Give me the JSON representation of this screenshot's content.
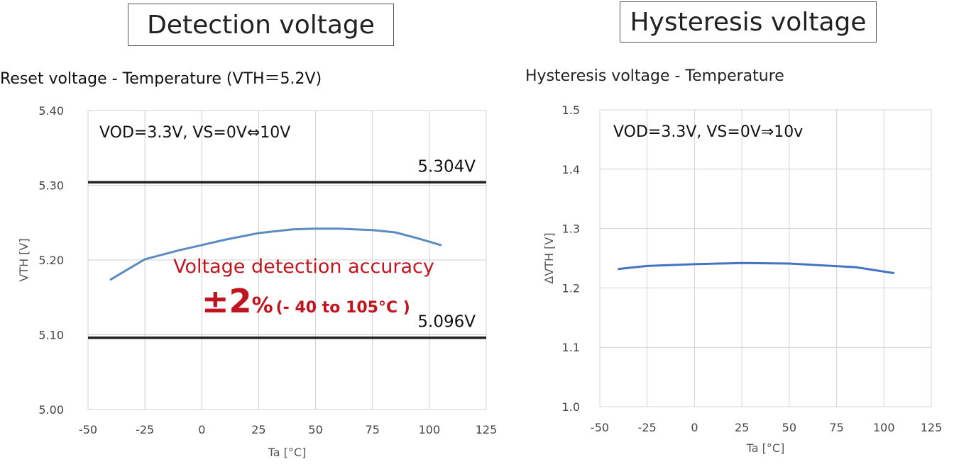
{
  "headers": {
    "left_badge": "Detection voltage",
    "right_badge": "Hysteresis voltage"
  },
  "chart_data": [
    {
      "type": "line",
      "title": "Reset voltage - Temperature (VTH＝5.2V)",
      "condition": "VOD=3.3V, VS=0V⇔10V",
      "xlabel": "Ta [°C]",
      "ylabel": "VTH [V]",
      "xlim": [
        -50,
        125
      ],
      "ylim": [
        5.0,
        5.4
      ],
      "x_ticks": [
        "-50",
        "-25",
        "0",
        "25",
        "50",
        "75",
        "100",
        "125"
      ],
      "y_ticks": [
        "5.00",
        "5.10",
        "5.20",
        "5.30",
        "5.40"
      ],
      "grid": true,
      "series": [
        {
          "color": "#5b8bc2",
          "x": [
            -40,
            -25,
            -10,
            0,
            10,
            25,
            40,
            50,
            60,
            75,
            85,
            95,
            105
          ],
          "y": [
            5.174,
            5.201,
            5.213,
            5.22,
            5.227,
            5.236,
            5.241,
            5.242,
            5.242,
            5.24,
            5.237,
            5.229,
            5.22
          ]
        }
      ],
      "limit_lines": [
        {
          "y": 5.304,
          "label": "5.304V"
        },
        {
          "y": 5.096,
          "label": "5.096V"
        }
      ],
      "annotation": {
        "line1": "Voltage detection accuracy",
        "value": "±2",
        "unit": "%",
        "range": "(- 40 to 105°C )",
        "color": "#c0141e"
      }
    },
    {
      "type": "line",
      "title": "Hysteresis voltage - Temperature",
      "condition": "VOD=3.3V, VS=0V⇒10v",
      "xlabel": "Ta [°C]",
      "ylabel": "ΔVTH [V]",
      "xlim": [
        -50,
        125
      ],
      "ylim": [
        1.0,
        1.5
      ],
      "x_ticks": [
        "-50",
        "-25",
        "0",
        "25",
        "50",
        "75",
        "100",
        "125"
      ],
      "y_ticks": [
        "1.0",
        "1.1",
        "1.2",
        "1.3",
        "1.4",
        "1.5"
      ],
      "grid": true,
      "series": [
        {
          "color": "#4472c4",
          "x": [
            -40,
            -25,
            0,
            25,
            50,
            85,
            105
          ],
          "y": [
            1.232,
            1.237,
            1.24,
            1.242,
            1.241,
            1.235,
            1.225
          ]
        }
      ]
    }
  ]
}
